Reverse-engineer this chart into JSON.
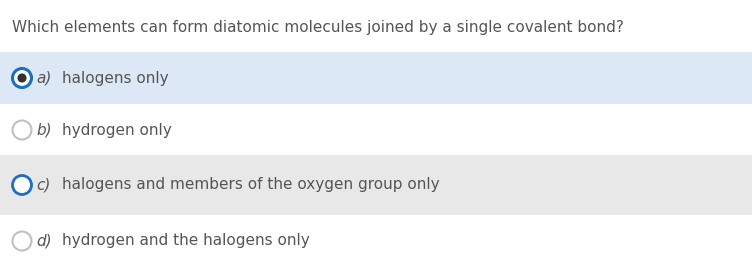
{
  "question": "Which elements can form diatomic molecules joined by a single covalent bond?",
  "options": [
    {
      "label": "a)",
      "text": "halogens only",
      "selected": true,
      "filled_dot": true,
      "bg_color": "#dce8f5"
    },
    {
      "label": "b)",
      "text": "hydrogen only",
      "selected": false,
      "filled_dot": false,
      "bg_color": "#ffffff"
    },
    {
      "label": "c)",
      "text": "halogens and members of the oxygen group only",
      "selected": false,
      "filled_dot": false,
      "bg_color": "#e8e8e8"
    },
    {
      "label": "d)",
      "text": "hydrogen and the halogens only",
      "selected": false,
      "filled_dot": false,
      "bg_color": "#ffffff"
    }
  ],
  "bg_color": "#ffffff",
  "question_color": "#555555",
  "text_color": "#555555",
  "label_color": "#555555",
  "selected_circle_edge": "#1a6fc4",
  "selected_dot_color": "#333333",
  "unselected_circle_edge_a": "#1a6fc4",
  "unselected_circle_edge": "#c0c0c0",
  "fig_width": 7.52,
  "fig_height": 2.69,
  "dpi": 100
}
